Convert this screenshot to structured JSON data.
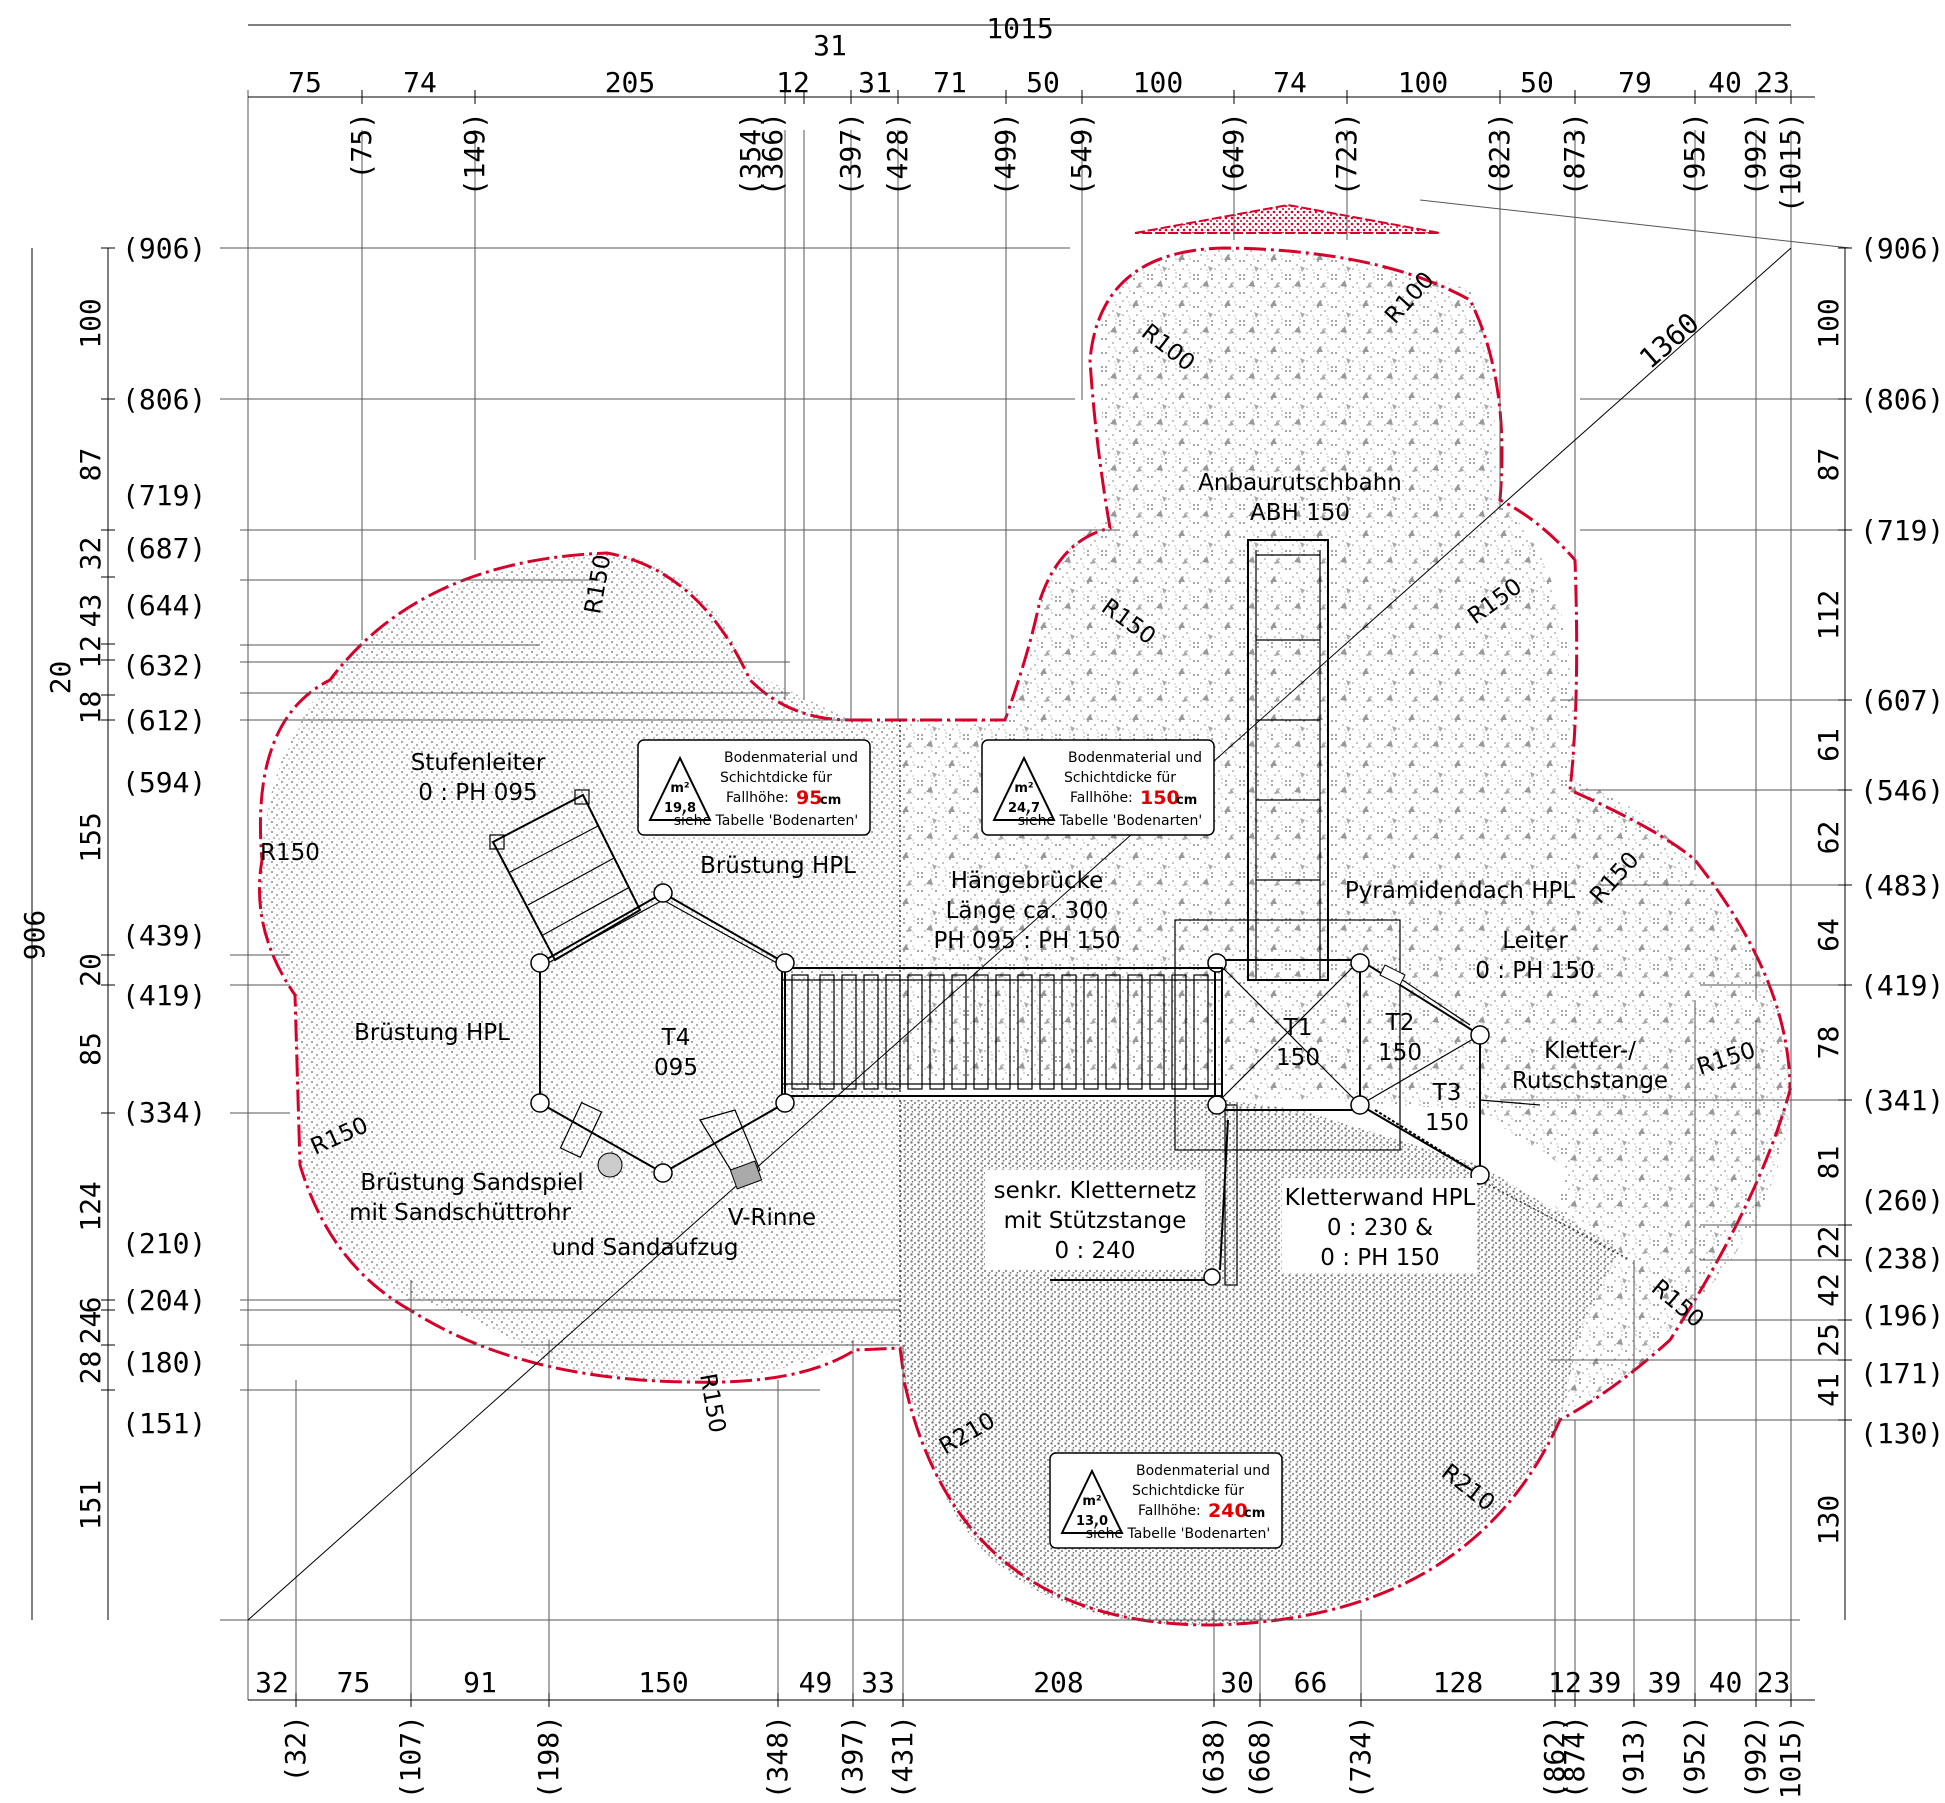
{
  "dimensions": {
    "overall_width": "1015",
    "overall_height": "906",
    "diagonal": "1360",
    "top_segments": [
      "75",
      "74",
      "205",
      "12",
      "31",
      "31",
      "71",
      "50",
      "100",
      "74",
      "100",
      "50",
      "79",
      "40",
      "23"
    ],
    "top_positions": [
      "(75)",
      "(149)",
      "(354)",
      "(366)",
      "(397)",
      "(428)",
      "(499)",
      "(549)",
      "(649)",
      "(723)",
      "(823)",
      "(873)",
      "(952)",
      "(992)",
      "(1015)"
    ],
    "bottom_segments": [
      "32",
      "75",
      "91",
      "150",
      "49",
      "33",
      "208",
      "30",
      "66",
      "128",
      "12",
      "39",
      "39",
      "40",
      "23"
    ],
    "bottom_positions": [
      "(32)",
      "(107)",
      "(198)",
      "(348)",
      "(397)",
      "(431)",
      "(638)",
      "(668)",
      "(734)",
      "(862)",
      "(874)",
      "(913)",
      "(952)",
      "(992)",
      "(1015)"
    ],
    "left_segments": [
      "100",
      "87",
      "32",
      "43",
      "12",
      "20",
      "18",
      "155",
      "20",
      "85",
      "124",
      "6",
      "24",
      "28",
      "151"
    ],
    "left_positions": [
      "(906)",
      "(806)",
      "(719)",
      "(687)",
      "(644)",
      "(632)",
      "(612)",
      "(594)",
      "(439)",
      "(419)",
      "(334)",
      "(210)",
      "(204)",
      "(180)",
      "(151)"
    ],
    "right_segments": [
      "100",
      "87",
      "112",
      "61",
      "62",
      "64",
      "78",
      "81",
      "22",
      "42",
      "25",
      "41",
      "130"
    ],
    "right_positions": [
      "(906)",
      "(806)",
      "(719)",
      "(607)",
      "(546)",
      "(483)",
      "(419)",
      "(341)",
      "(260)",
      "(238)",
      "(196)",
      "(171)",
      "(130)"
    ]
  },
  "radii": [
    "R100",
    "R100",
    "R150",
    "R150",
    "R150",
    "R150",
    "R150",
    "R150",
    "R150",
    "R150",
    "R210",
    "R210"
  ],
  "labels": {
    "anbaurutschbahn": [
      "Anbaurutschbahn",
      "ABH 150"
    ],
    "stufenleiter": [
      "Stufenleiter",
      "0 : PH 095"
    ],
    "bruestung_top": "Brüstung HPL",
    "haengebruecke": [
      "Hängebrücke",
      "Länge ca. 300",
      "PH 095 : PH 150"
    ],
    "pyramidendach": "Pyramidendach HPL",
    "leiter": [
      "Leiter",
      "0 : PH 150"
    ],
    "kletter_rutschstange": [
      "Kletter-/",
      "Rutschstange"
    ],
    "bruestung_left": "Brüstung HPL",
    "t4": [
      "T4",
      "095"
    ],
    "t1": [
      "T1",
      "150"
    ],
    "t2": [
      "T2",
      "150"
    ],
    "t3": [
      "T3",
      "150"
    ],
    "sandspiel": [
      "Brüstung Sandspiel",
      "mit Sandschüttrohr",
      "und Sandaufzug"
    ],
    "v_rinne": "V-Rinne",
    "kletternetz": [
      "senkr. Kletternetz",
      "mit Stützstange",
      "0 : 240"
    ],
    "kletterwand": [
      "Kletterwand HPL",
      "0 : 230 &",
      "0 : PH 150"
    ]
  },
  "info_boxes": [
    {
      "area": "19,8",
      "text1": "Bodenmaterial und",
      "text2": "Schichtdicke für",
      "label": "Fallhöhe:",
      "height": "95",
      "unit": "cm",
      "note": "siehe Tabelle 'Bodenarten'"
    },
    {
      "area": "24,7",
      "text1": "Bodenmaterial und",
      "text2": "Schichtdicke für",
      "label": "Fallhöhe:",
      "height": "150",
      "unit": "cm",
      "note": "siehe Tabelle 'Bodenarten'"
    },
    {
      "area": "13,0",
      "text1": "Bodenmaterial und",
      "text2": "Schichtdicke für",
      "label": "Fallhöhe:",
      "height": "240",
      "unit": "cm",
      "note": "siehe Tabelle 'Bodenarten'"
    }
  ],
  "unit_symbol": "m²",
  "colors": {
    "boundary": "#d6002a",
    "dots": "#8a8a8a",
    "dark_dots": "#7a7a7a",
    "line": "#000000"
  }
}
